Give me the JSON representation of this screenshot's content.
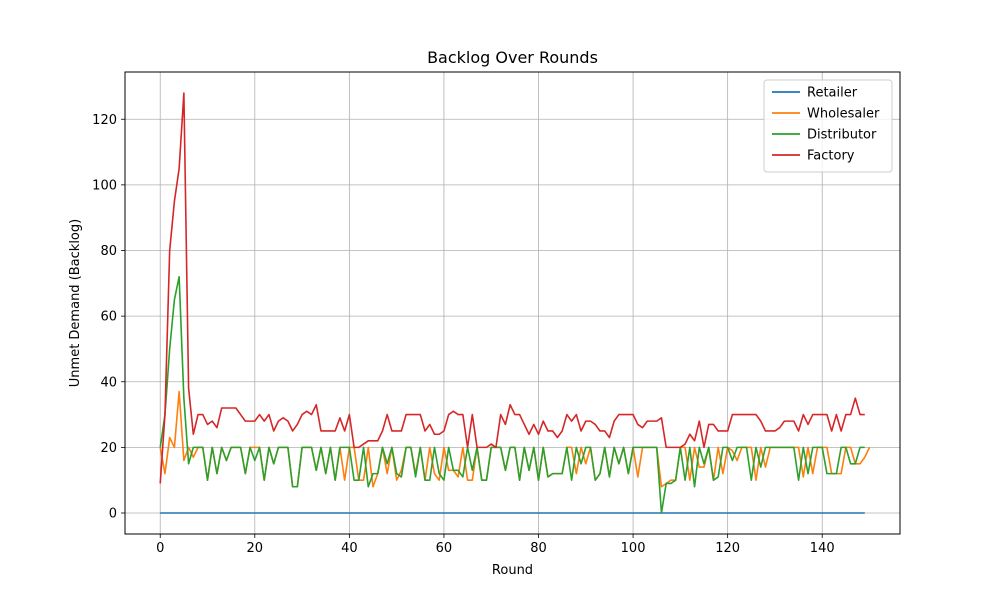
{
  "chart_data": {
    "type": "line",
    "title": "Backlog Over Rounds",
    "xlabel": "Round",
    "ylabel": "Unmet Demand (Backlog)",
    "xlim": [
      -7.45,
      156.45
    ],
    "ylim": [
      -6.4,
      134.4
    ],
    "xticks": [
      0,
      20,
      40,
      60,
      80,
      100,
      120,
      140
    ],
    "yticks": [
      0,
      20,
      40,
      60,
      80,
      100,
      120
    ],
    "grid": true,
    "legend_position": "top-right",
    "x_start": 0,
    "series": [
      {
        "name": "Retailer",
        "color": "#1f77b4",
        "values": [
          0,
          0,
          0,
          0,
          0,
          0,
          0,
          0,
          0,
          0,
          0,
          0,
          0,
          0,
          0,
          0,
          0,
          0,
          0,
          0,
          0,
          0,
          0,
          0,
          0,
          0,
          0,
          0,
          0,
          0,
          0,
          0,
          0,
          0,
          0,
          0,
          0,
          0,
          0,
          0,
          0,
          0,
          0,
          0,
          0,
          0,
          0,
          0,
          0,
          0,
          0,
          0,
          0,
          0,
          0,
          0,
          0,
          0,
          0,
          0,
          0,
          0,
          0,
          0,
          0,
          0,
          0,
          0,
          0,
          0,
          0,
          0,
          0,
          0,
          0,
          0,
          0,
          0,
          0,
          0,
          0,
          0,
          0,
          0,
          0,
          0,
          0,
          0,
          0,
          0,
          0,
          0,
          0,
          0,
          0,
          0,
          0,
          0,
          0,
          0,
          0,
          0,
          0,
          0,
          0,
          0,
          0,
          0,
          0,
          0,
          0,
          0,
          0,
          0,
          0,
          0,
          0,
          0,
          0,
          0,
          0,
          0,
          0,
          0,
          0,
          0,
          0,
          0,
          0,
          0,
          0,
          0,
          0,
          0,
          0,
          0,
          0,
          0,
          0,
          0,
          0,
          0,
          0,
          0,
          0,
          0,
          0,
          0,
          0,
          0
        ]
      },
      {
        "name": "Wholesaler",
        "color": "#ff7f0e",
        "values": [
          20,
          12,
          23,
          20,
          37,
          16,
          20,
          17,
          20,
          20,
          10,
          20,
          12,
          20,
          16,
          20,
          20,
          20,
          12,
          20,
          20,
          20,
          10,
          20,
          15,
          20,
          20,
          20,
          8,
          8,
          20,
          20,
          20,
          13,
          20,
          12,
          20,
          10,
          20,
          10,
          20,
          20,
          10,
          10,
          20,
          8,
          12,
          20,
          12,
          20,
          10,
          13,
          20,
          20,
          12,
          20,
          10,
          20,
          12,
          10,
          20,
          13,
          13,
          11,
          20,
          10,
          10,
          20,
          10,
          10,
          20,
          20,
          20,
          13,
          20,
          20,
          10,
          20,
          13,
          20,
          10,
          20,
          11,
          12,
          12,
          12,
          20,
          20,
          12,
          20,
          15,
          20,
          10,
          12,
          20,
          11,
          20,
          15,
          20,
          12,
          20,
          11,
          20,
          20,
          20,
          20,
          8,
          9,
          10,
          10,
          20,
          20,
          10,
          20,
          14,
          14,
          20,
          10,
          20,
          12,
          20,
          19,
          16,
          20,
          20,
          20,
          10,
          20,
          14,
          20,
          20,
          20,
          20,
          20,
          20,
          20,
          11,
          20,
          12,
          20,
          20,
          20,
          12,
          12,
          12,
          20,
          20,
          15,
          15,
          17,
          20
        ]
      },
      {
        "name": "Distributor",
        "color": "#2ca02c",
        "values": [
          20,
          30,
          50,
          65,
          72,
          35,
          15,
          20,
          20,
          20,
          10,
          20,
          12,
          20,
          16,
          20,
          20,
          20,
          12,
          20,
          16,
          20,
          10,
          20,
          15,
          20,
          20,
          20,
          8,
          8,
          20,
          20,
          20,
          13,
          20,
          12,
          20,
          10,
          20,
          20,
          20,
          10,
          10,
          20,
          8,
          12,
          12,
          20,
          15,
          20,
          12,
          11,
          20,
          20,
          11,
          20,
          10,
          10,
          20,
          12,
          10,
          20,
          13,
          13,
          11,
          20,
          13,
          20,
          10,
          10,
          20,
          20,
          20,
          13,
          20,
          20,
          10,
          20,
          13,
          20,
          10,
          20,
          11,
          12,
          12,
          12,
          20,
          10,
          20,
          15,
          20,
          20,
          10,
          12,
          20,
          11,
          20,
          15,
          20,
          12,
          20,
          20,
          20,
          20,
          20,
          20,
          0,
          9,
          9,
          10,
          20,
          10,
          20,
          8,
          20,
          15,
          20,
          10,
          11,
          20,
          20,
          16,
          20,
          20,
          20,
          10,
          20,
          14,
          20,
          20,
          20,
          20,
          20,
          20,
          20,
          10,
          20,
          12,
          20,
          20,
          20,
          12,
          12,
          12,
          20,
          20,
          15,
          15,
          20,
          20
        ]
      },
      {
        "name": "Factory",
        "color": "#d62728",
        "values": [
          9,
          30,
          80,
          95,
          105,
          128,
          38,
          24,
          30,
          30,
          27,
          28,
          26,
          32,
          32,
          32,
          32,
          30,
          28,
          28,
          28,
          30,
          28,
          30,
          25,
          28,
          29,
          28,
          25,
          27,
          30,
          31,
          30,
          33,
          25,
          25,
          25,
          25,
          29,
          25,
          30,
          20,
          20,
          21,
          22,
          22,
          22,
          25,
          30,
          25,
          25,
          25,
          30,
          30,
          30,
          30,
          25,
          27,
          24,
          24,
          25,
          30,
          31,
          30,
          30,
          20,
          30,
          20,
          20,
          20,
          21,
          20,
          30,
          27,
          33,
          30,
          30,
          27,
          24,
          27,
          24,
          28,
          25,
          25,
          23,
          25,
          30,
          28,
          30,
          25,
          28,
          28,
          27,
          25,
          25,
          23,
          28,
          30,
          30,
          30,
          30,
          27,
          26,
          28,
          28,
          28,
          29,
          20,
          20,
          20,
          20,
          21,
          24,
          22,
          28,
          20,
          27,
          27,
          25,
          25,
          25,
          30,
          30,
          30,
          30,
          30,
          30,
          28,
          25,
          25,
          25,
          26,
          28,
          28,
          28,
          25,
          30,
          27,
          30,
          30,
          30,
          30,
          25,
          30,
          25,
          30,
          30,
          35,
          30,
          30
        ]
      }
    ]
  }
}
